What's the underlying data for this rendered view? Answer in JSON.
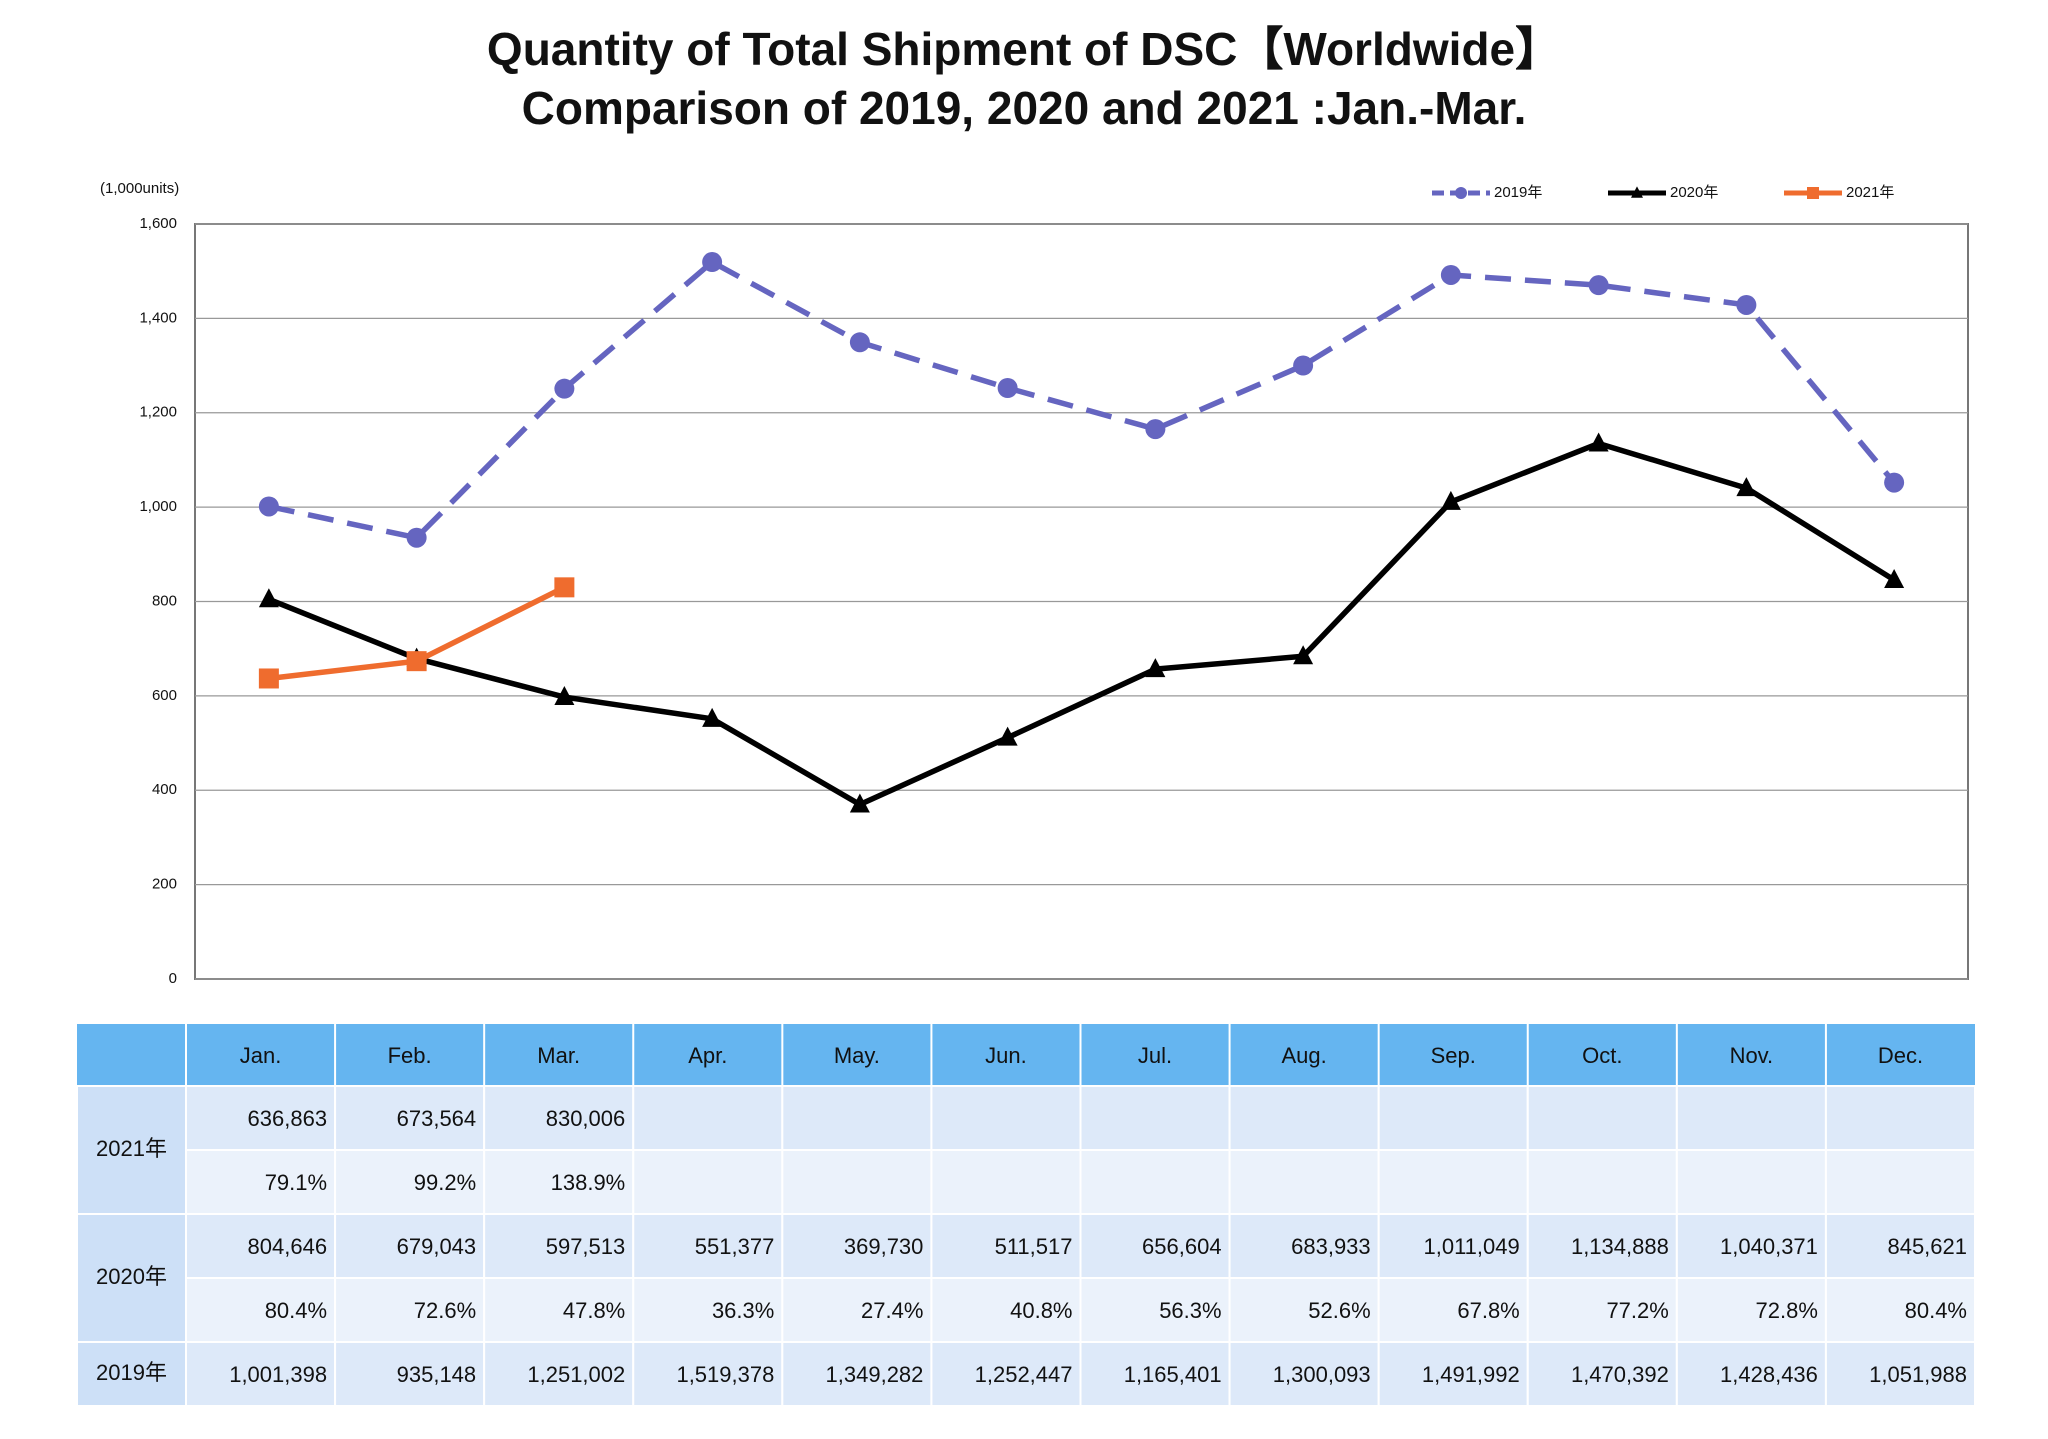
{
  "chart_data": {
    "type": "line",
    "title": "Quantity of Total Shipment of DSC【Worldwide】",
    "subtitle": "Comparison of 2019, 2020 and 2021 :Jan.-Mar.",
    "y_label": "(1,000units)",
    "categories": [
      "Jan.",
      "Feb.",
      "Mar.",
      "Apr.",
      "May.",
      "Jun.",
      "Jul.",
      "Aug.",
      "Sep.",
      "Oct.",
      "Nov.",
      "Dec."
    ],
    "series": [
      {
        "name": "2019年",
        "color": "#6565c0",
        "dash": true,
        "marker": "circle",
        "values": [
          1001.398,
          935.148,
          1251.002,
          1519.378,
          1349.282,
          1252.447,
          1165.401,
          1300.093,
          1491.992,
          1470.392,
          1428.436,
          1051.988
        ]
      },
      {
        "name": "2020年",
        "color": "#000000",
        "dash": false,
        "marker": "triangle",
        "values": [
          804.646,
          679.043,
          597.513,
          551.377,
          369.73,
          511.517,
          656.604,
          683.933,
          1011.049,
          1134.888,
          1040.371,
          845.621
        ]
      },
      {
        "name": "2021年",
        "color": "#ef6c2e",
        "dash": false,
        "marker": "square",
        "values": [
          636.863,
          673.564,
          830.006,
          null,
          null,
          null,
          null,
          null,
          null,
          null,
          null,
          null
        ]
      }
    ],
    "ylim": [
      0,
      1600
    ],
    "yticks": [
      0,
      200,
      400,
      600,
      800,
      {
        "value": 1000,
        "label": "1,000"
      },
      {
        "value": 1200,
        "label": "1,200"
      },
      {
        "value": 1400,
        "label": "1,400"
      },
      {
        "value": 1600,
        "label": "1,600"
      }
    ],
    "grid": true,
    "legend": "top-right"
  },
  "table": {
    "rows": [
      {
        "label": "2021年",
        "values": [
          "636,863",
          "673,564",
          "830,006"
        ],
        "ratios": [
          "79.1%",
          "99.2%",
          "138.9%"
        ]
      },
      {
        "label": "2020年",
        "values": [
          "804,646",
          "679,043",
          "597,513",
          "551,377",
          "369,730",
          "511,517",
          "656,604",
          "683,933",
          "1,011,049",
          "1,134,888",
          "1,040,371",
          "845,621"
        ],
        "ratios": [
          "80.4%",
          "72.6%",
          "47.8%",
          "36.3%",
          "27.4%",
          "40.8%",
          "56.3%",
          "52.6%",
          "67.8%",
          "77.2%",
          "72.8%",
          "80.4%"
        ]
      },
      {
        "label": "2019年",
        "values": [
          "1,001,398",
          "935,148",
          "1,251,002",
          "1,519,378",
          "1,349,282",
          "1,252,447",
          "1,165,401",
          "1,300,093",
          "1,491,992",
          "1,470,392",
          "1,428,436",
          "1,051,988"
        ]
      }
    ]
  }
}
